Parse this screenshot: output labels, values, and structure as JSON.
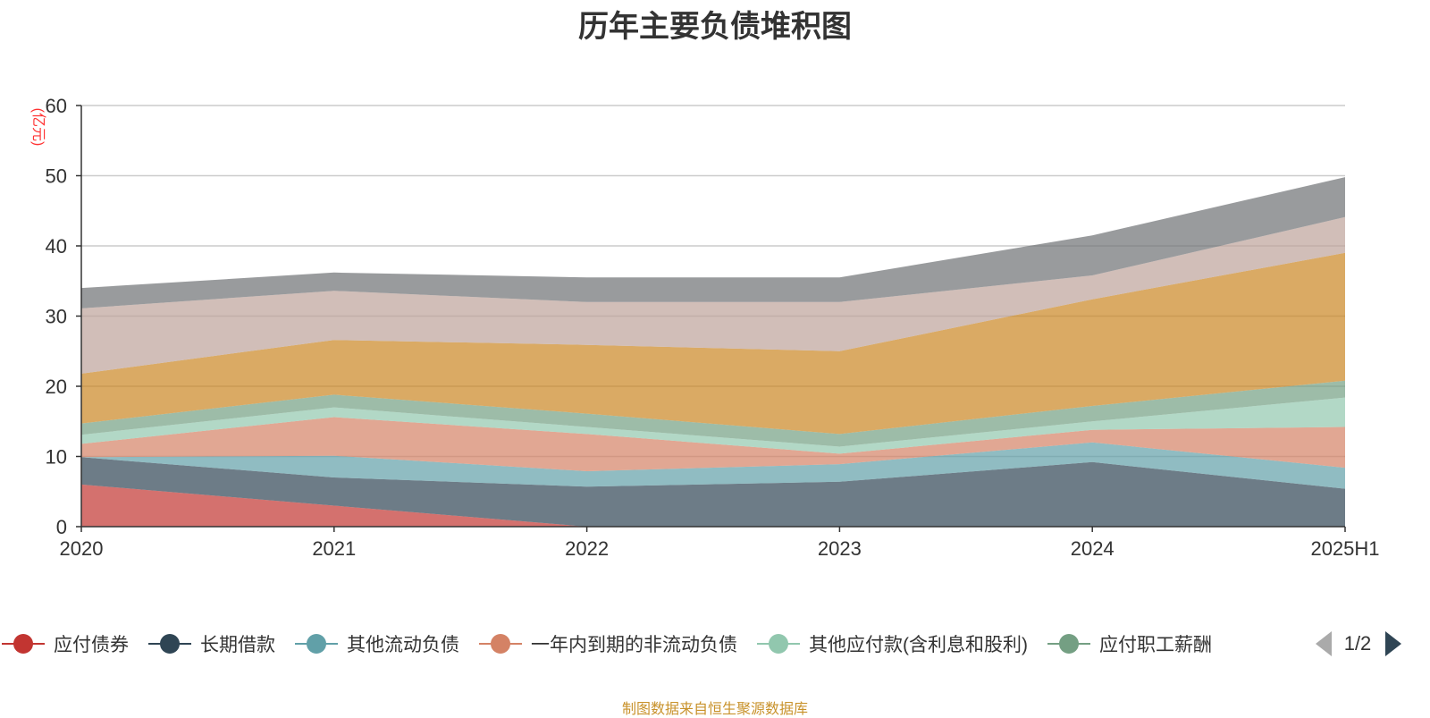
{
  "chart_data": {
    "type": "area",
    "title": "历年主要负债堆积图",
    "ylabel": "(亿元)",
    "categories": [
      "2020",
      "2021",
      "2022",
      "2023",
      "2024",
      "2025H1"
    ],
    "ylim": [
      0,
      60
    ],
    "yticks": [
      0,
      10,
      20,
      30,
      40,
      50,
      60
    ],
    "grid": true,
    "stacked": true,
    "series": [
      {
        "name": "应付债券",
        "color": "#c23531",
        "values": [
          6.0,
          3.0,
          0.0,
          0.0,
          0.0,
          0.0
        ]
      },
      {
        "name": "长期借款",
        "color": "#2f4554",
        "values": [
          3.9,
          4.0,
          5.7,
          6.4,
          9.2,
          5.4
        ]
      },
      {
        "name": "其他流动负债",
        "color": "#61a0a8",
        "values": [
          0.0,
          3.1,
          2.2,
          2.5,
          2.8,
          3.0
        ]
      },
      {
        "name": "一年内到期的非流动负债",
        "color": "#d48265",
        "values": [
          1.9,
          5.5,
          5.3,
          1.5,
          1.8,
          5.8
        ]
      },
      {
        "name": "其他应付款(含利息和股利)",
        "color": "#91c7ae",
        "values": [
          1.3,
          1.4,
          1.0,
          1.0,
          1.2,
          4.2
        ]
      },
      {
        "name": "应付职工薪酬",
        "color": "#749f83",
        "values": [
          1.6,
          1.8,
          1.9,
          1.8,
          2.2,
          2.4
        ]
      },
      {
        "name": "",
        "color": "#ca8622",
        "values": [
          7.1,
          7.8,
          9.8,
          11.8,
          15.2,
          18.2
        ]
      },
      {
        "name": "",
        "color": "#bda29a",
        "values": [
          9.3,
          7.0,
          6.1,
          7.0,
          3.4,
          5.1
        ]
      },
      {
        "name": "",
        "color": "#6e7074",
        "values": [
          2.9,
          2.6,
          3.5,
          3.5,
          5.7,
          5.7
        ]
      }
    ],
    "legend": {
      "position": "bottom",
      "page": "1/2"
    }
  },
  "legend_items": [
    "应付债券",
    "长期借款",
    "其他流动负债",
    "一年内到期的非流动负债",
    "其他应付款(含利息和股利)",
    "应付职工薪酬"
  ],
  "source_note": "制图数据来自恒生聚源数据库"
}
